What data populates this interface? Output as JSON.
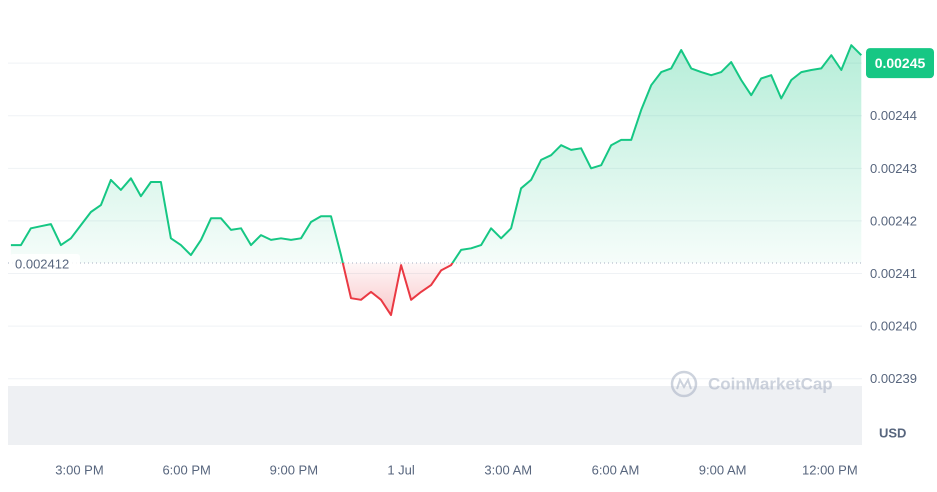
{
  "chart_data": {
    "type": "line",
    "x": [
      -10.92,
      -10.64,
      -10.36,
      -10.08,
      -9.8,
      -9.52,
      -9.24,
      -8.96,
      -8.68,
      -8.4,
      -8.12,
      -7.84,
      -7.56,
      -7.28,
      -7,
      -6.72,
      -6.44,
      -6.16,
      -5.88,
      -5.6,
      -5.32,
      -5.04,
      -4.76,
      -4.48,
      -4.2,
      -3.92,
      -3.64,
      -3.36,
      -3.08,
      -2.8,
      -2.52,
      -2.24,
      -1.96,
      -1.68,
      -1.4,
      -1.12,
      -0.84,
      -0.56,
      -0.28,
      0,
      0.28,
      0.56,
      0.84,
      1.12,
      1.4,
      1.68,
      1.96,
      2.24,
      2.52,
      2.8,
      3.08,
      3.36,
      3.64,
      3.92,
      4.2,
      4.48,
      4.76,
      5.04,
      5.32,
      5.6,
      5.88,
      6.16,
      6.44,
      6.72,
      7,
      7.28,
      7.56,
      7.84,
      8.12,
      8.4,
      8.68,
      8.96,
      9.24,
      9.52,
      9.8,
      10.08,
      10.36,
      10.64,
      10.92,
      11.2,
      11.48,
      11.76,
      12.04,
      12.32,
      12.6,
      12.88
    ],
    "values": [
      0.0024154,
      0.0024154,
      0.0024186,
      0.002419,
      0.0024194,
      0.0024154,
      0.0024167,
      0.0024192,
      0.0024217,
      0.002423,
      0.0024278,
      0.0024259,
      0.0024281,
      0.0024247,
      0.0024274,
      0.0024274,
      0.0024167,
      0.0024154,
      0.0024135,
      0.0024164,
      0.0024205,
      0.0024205,
      0.0024183,
      0.0024186,
      0.0024154,
      0.0024173,
      0.0024164,
      0.0024167,
      0.0024164,
      0.0024167,
      0.0024198,
      0.0024209,
      0.0024209,
      0.0024135,
      0.0024053,
      0.002405,
      0.0024065,
      0.002405,
      0.0024021,
      0.0024116,
      0.002405,
      0.0024065,
      0.0024078,
      0.0024106,
      0.0024116,
      0.0024145,
      0.0024148,
      0.0024154,
      0.0024186,
      0.0024167,
      0.0024186,
      0.0024262,
      0.0024278,
      0.0024316,
      0.0024325,
      0.0024344,
      0.0024335,
      0.0024338,
      0.00243,
      0.0024306,
      0.0024344,
      0.0024354,
      0.0024354,
      0.0024411,
      0.0024458,
      0.0024483,
      0.002449,
      0.0024525,
      0.002449,
      0.0024483,
      0.0024477,
      0.0024483,
      0.0024502,
      0.0024468,
      0.0024439,
      0.0024471,
      0.0024477,
      0.0024433,
      0.0024468,
      0.0024483,
      0.0024487,
      0.002449,
      0.0024515,
      0.0024487,
      0.0024534,
      0.0024515
    ],
    "baseline": 0.002412,
    "baseline_label": "0.002412",
    "current_price": {
      "value": 0.00245,
      "label": "0.00245"
    },
    "color_up": "#16c784",
    "color_down": "#ea3943",
    "xlim": [
      -11,
      12.9
    ],
    "xticks": [
      {
        "value": -9,
        "label": "3:00 PM"
      },
      {
        "value": -6,
        "label": "6:00 PM"
      },
      {
        "value": -3,
        "label": "9:00 PM"
      },
      {
        "value": 0,
        "label": "1 Jul"
      },
      {
        "value": 3,
        "label": "3:00 AM"
      },
      {
        "value": 6,
        "label": "6:00 AM"
      },
      {
        "value": 9,
        "label": "9:00 AM"
      },
      {
        "value": 12,
        "label": "12:00 PM"
      }
    ],
    "ylim": [
      0.0023774,
      0.0024601
    ],
    "yticks": [
      0.00239,
      {
        "value": 0.0024,
        "label": "0.00240"
      },
      0.00241,
      0.00242,
      0.00243,
      0.00244
    ],
    "grid": true,
    "currency": "USD",
    "watermark": "CoinMarketCap"
  }
}
